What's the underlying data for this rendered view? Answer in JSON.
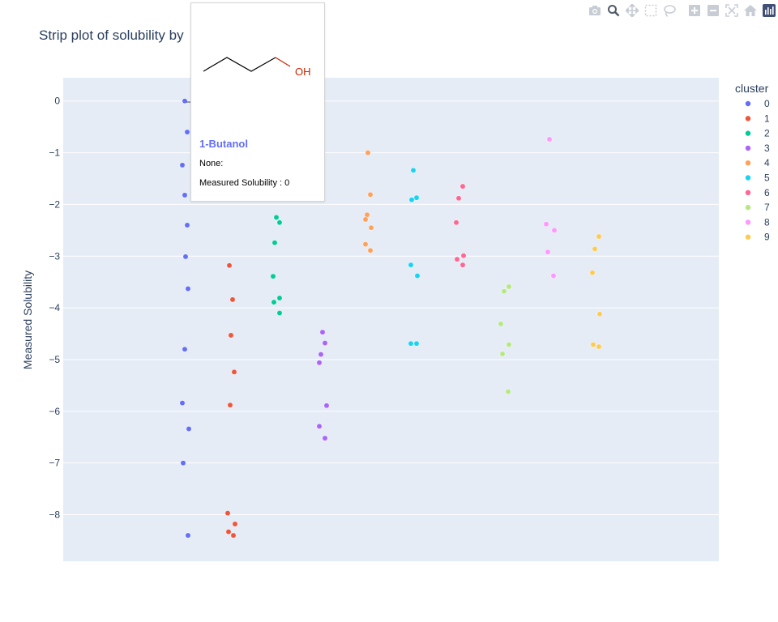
{
  "chart_data": {
    "type": "scatter",
    "subtype": "strip",
    "title": "Strip plot of solubility by",
    "xlabel": "",
    "ylabel": "Measured Solubility",
    "ylim": [
      -8.9,
      0.45
    ],
    "yticks": [
      0,
      -1,
      -2,
      -3,
      -4,
      -5,
      -6,
      -7,
      -8
    ],
    "grid": true,
    "legend": {
      "title": "cluster",
      "placement": "right"
    },
    "series": [
      {
        "name": "0",
        "color": "#636efa",
        "values": [
          0,
          -0.6,
          -1.24,
          -1.82,
          -2.4,
          -3.01,
          -3.63,
          -4.8,
          -5.84,
          -6.34,
          -7.0,
          -8.4
        ]
      },
      {
        "name": "1",
        "color": "#EF553B",
        "values": [
          -3.18,
          -3.84,
          -4.53,
          -5.24,
          -5.88,
          -7.97,
          -8.18,
          -8.33,
          -8.4
        ]
      },
      {
        "name": "2",
        "color": "#00cc96",
        "values": [
          -2.25,
          -2.35,
          -2.74,
          -3.39,
          -3.81,
          -3.89,
          -4.1
        ]
      },
      {
        "name": "3",
        "color": "#ab63fa",
        "values": [
          -4.47,
          -4.68,
          -4.9,
          -5.06,
          -5.89,
          -6.29,
          -6.52
        ]
      },
      {
        "name": "4",
        "color": "#FFA15A",
        "values": [
          -1.0,
          -1.81,
          -2.2,
          -2.29,
          -2.45,
          -2.77,
          -2.89
        ]
      },
      {
        "name": "5",
        "color": "#19d3f3",
        "values": [
          -1.34,
          -1.87,
          -1.91,
          -3.17,
          -3.38,
          -4.69,
          -4.69
        ]
      },
      {
        "name": "6",
        "color": "#FF6692",
        "values": [
          -1.65,
          -1.88,
          -2.35,
          -2.99,
          -3.06,
          -3.17
        ]
      },
      {
        "name": "7",
        "color": "#B6E880",
        "values": [
          -3.59,
          -3.68,
          -4.31,
          -4.71,
          -4.89,
          -5.62
        ]
      },
      {
        "name": "8",
        "color": "#FF97FF",
        "values": [
          -0.74,
          -2.38,
          -2.5,
          -2.92,
          -3.38
        ]
      },
      {
        "name": "9",
        "color": "#FECB52",
        "values": [
          -2.62,
          -2.86,
          -3.32,
          -4.12,
          -4.71,
          -4.75
        ]
      }
    ]
  },
  "tooltip": {
    "name": "1-Butanol",
    "line1": "None:",
    "line2": "Measured Solubility : 0",
    "oh_label": "OH"
  },
  "modebar": {
    "icons": [
      "camera-icon",
      "zoom-icon",
      "pan-icon",
      "box-select-icon",
      "lasso-icon",
      "zoom-in-icon",
      "zoom-out-icon",
      "autoscale-icon",
      "reset-axes-icon",
      "plotly-logo-icon"
    ]
  }
}
